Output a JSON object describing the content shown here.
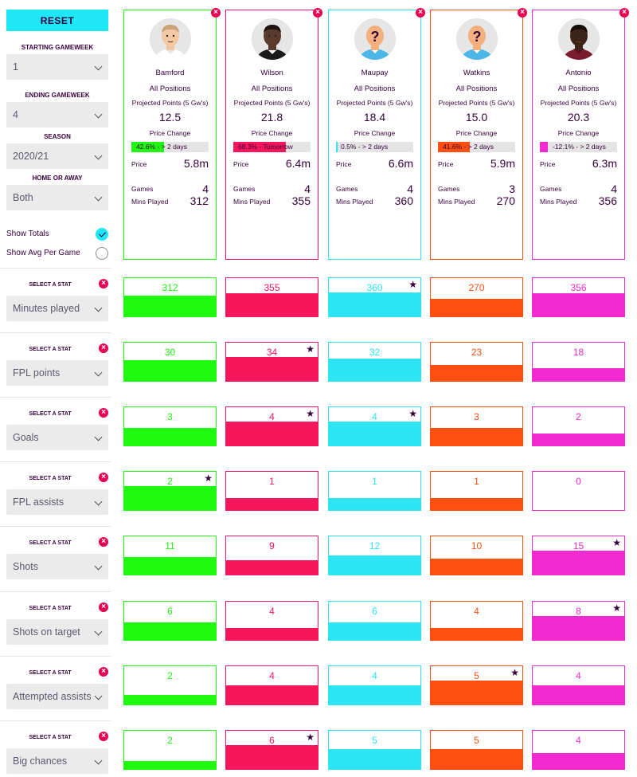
{
  "sidebar": {
    "reset_label": "RESET",
    "starting_gameweek": {
      "label": "STARTING GAMEWEEK",
      "value": "1"
    },
    "ending_gameweek": {
      "label": "ENDING GAMEWEEK",
      "value": "4"
    },
    "season": {
      "label": "SEASON",
      "value": "2020/21"
    },
    "home_away": {
      "label": "HOME OR AWAY",
      "value": "Both"
    },
    "show_totals": {
      "label": "Show Totals",
      "checked": true
    },
    "show_avg": {
      "label": "Show Avg Per Game",
      "checked": false
    },
    "select_stat_label": "SELECT A STAT"
  },
  "labels": {
    "projected_points": "Projected Points (5 Gw's)",
    "price_change": "Price Change",
    "price": "Price",
    "games": "Games",
    "mins_played": "Mins Played"
  },
  "players": [
    {
      "name": "Bamford",
      "position": "All Positions",
      "projected": "12.5",
      "price_change_text": "42.6% - > 2 days",
      "price_change_pct": 42.6,
      "price": "5.8m",
      "games": "4",
      "mins": "312",
      "color": "#1ff80f",
      "avatar": "face",
      "skin": "#f2c7a1",
      "hair": "#c9a27a",
      "shirt": "#ffffff",
      "collar": "#e6e6e6"
    },
    {
      "name": "Wilson",
      "position": "All Positions",
      "projected": "21.8",
      "price_change_text": "68.3% - Tomorrow",
      "price_change_pct": 68.3,
      "price": "6.4m",
      "games": "4",
      "mins": "355",
      "color": "#f5165c",
      "avatar": "face",
      "skin": "#5a3a2a",
      "hair": "#1f1410",
      "shirt": "#1a1a1a",
      "collar": "#ffffff"
    },
    {
      "name": "Maupay",
      "position": "All Positions",
      "projected": "18.4",
      "price_change_text": "0.5% - > 2 days",
      "price_change_pct": 0.5,
      "price": "6.6m",
      "games": "4",
      "mins": "360",
      "color": "#2de4f5",
      "avatar": "unknown",
      "skin": "#f3b07e",
      "hair": "#f3b07e",
      "shirt": "#4cb6e8",
      "collar": "#ffffff"
    },
    {
      "name": "Watkins",
      "position": "All Positions",
      "projected": "15.0",
      "price_change_text": "41.6% - > 2 days",
      "price_change_pct": 41.6,
      "price": "5.9m",
      "games": "3",
      "mins": "270",
      "color": "#fc4f10",
      "avatar": "unknown",
      "skin": "#f3b07e",
      "hair": "#f3b07e",
      "shirt": "#4cb6e8",
      "collar": "#ffffff"
    },
    {
      "name": "Antonio",
      "position": "All Positions",
      "projected": "20.3",
      "price_change_text": "-12.1% - > 2 days",
      "price_change_pct": -12.1,
      "price": "6.3m",
      "games": "4",
      "mins": "356",
      "color": "#f22ad0",
      "avatar": "face",
      "skin": "#3d2418",
      "hair": "#160c08",
      "shirt": "#7a1c2e",
      "collar": "#5a1020"
    }
  ],
  "stats": [
    {
      "name": "Minutes played",
      "values": [
        312,
        355,
        360,
        270,
        356
      ],
      "best": [
        false,
        false,
        true,
        false,
        false
      ],
      "max": 360
    },
    {
      "name": "FPL points",
      "values": [
        30,
        34,
        32,
        23,
        18
      ],
      "best": [
        false,
        true,
        false,
        false,
        false
      ],
      "max": 34
    },
    {
      "name": "Goals",
      "values": [
        3,
        4,
        4,
        3,
        2
      ],
      "best": [
        false,
        true,
        true,
        false,
        false
      ],
      "max": 4
    },
    {
      "name": "FPL assists",
      "values": [
        2,
        1,
        1,
        1,
        0
      ],
      "best": [
        true,
        false,
        false,
        false,
        false
      ],
      "max": 2
    },
    {
      "name": "Shots",
      "values": [
        11,
        9,
        12,
        10,
        15
      ],
      "best": [
        false,
        false,
        false,
        false,
        true
      ],
      "max": 15
    },
    {
      "name": "Shots on target",
      "values": [
        6,
        4,
        6,
        4,
        8
      ],
      "best": [
        false,
        false,
        false,
        false,
        true
      ],
      "max": 8
    },
    {
      "name": "Attempted assists",
      "values": [
        2,
        4,
        4,
        5,
        4
      ],
      "best": [
        false,
        false,
        false,
        true,
        false
      ],
      "max": 5
    },
    {
      "name": "Big chances",
      "values": [
        2,
        6,
        5,
        5,
        4
      ],
      "best": [
        false,
        true,
        false,
        false,
        false
      ],
      "max": 6
    }
  ]
}
